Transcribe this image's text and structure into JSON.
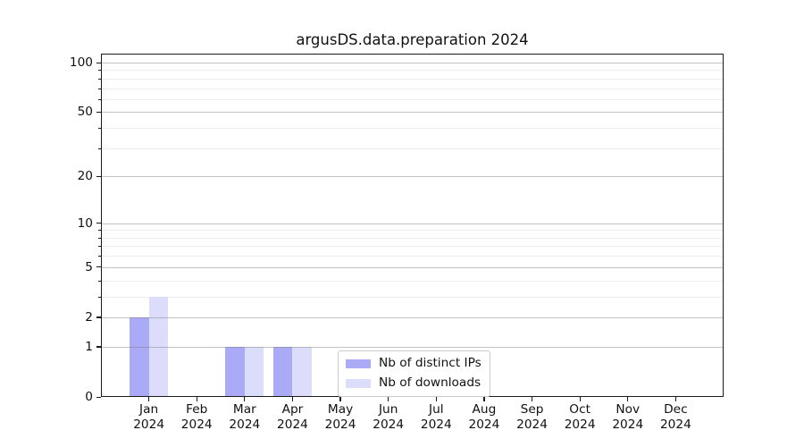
{
  "title": "argusDS.data.preparation 2024",
  "chart_data": {
    "type": "bar",
    "title": "argusDS.data.preparation 2024",
    "categories": [
      "Jan",
      "Feb",
      "Mar",
      "Apr",
      "May",
      "Jun",
      "Jul",
      "Aug",
      "Sep",
      "Oct",
      "Nov",
      "Dec"
    ],
    "x_year_label": "2024",
    "series": [
      {
        "name": "Nb of distinct IPs",
        "color": "#aaaaf6",
        "values": [
          2,
          0,
          1,
          1,
          0,
          0,
          0,
          0,
          0,
          0,
          0,
          0
        ]
      },
      {
        "name": "Nb of downloads",
        "color": "#dcddfa",
        "values": [
          3,
          0,
          1,
          1,
          0,
          0,
          0,
          0,
          0,
          0,
          0,
          0
        ]
      }
    ],
    "yscale": "log1p",
    "ylim": [
      0,
      113
    ],
    "yticks": [
      0,
      1,
      2,
      5,
      10,
      20,
      50,
      100
    ],
    "yticks_minor": [
      3,
      4,
      6,
      7,
      8,
      9,
      30,
      40,
      60,
      70,
      80,
      90
    ],
    "grid": "horizontal",
    "legend_position": "lower-center-inside",
    "colors": {
      "spine": "#1a1a1a",
      "grid_major": "#c7c7c7",
      "grid_minor": "#ededed",
      "text": "#111111"
    }
  }
}
